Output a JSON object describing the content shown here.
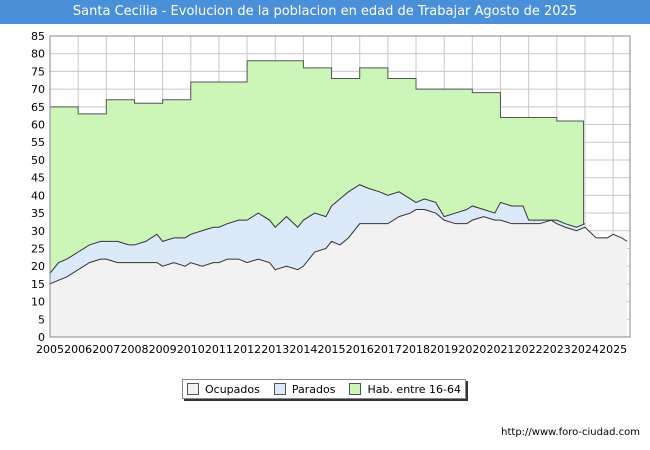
{
  "chart_data": {
    "type": "area",
    "title": "Santa Cecilia - Evolucion de la poblacion en edad de Trabajar Agosto de 2025",
    "xlabel": "",
    "ylabel": "",
    "xlim": [
      2005,
      2025.6
    ],
    "ylim": [
      0,
      85
    ],
    "grid": true,
    "x_ticks": [
      "2005",
      "2006",
      "2007",
      "2008",
      "2009",
      "2010",
      "2011",
      "2012",
      "2013",
      "2014",
      "2015",
      "2016",
      "2017",
      "2018",
      "2019",
      "2020",
      "2021",
      "2022",
      "2023",
      "2024",
      "2025"
    ],
    "y_ticks": [
      "0",
      "5",
      "10",
      "15",
      "20",
      "25",
      "30",
      "35",
      "40",
      "45",
      "50",
      "55",
      "60",
      "65",
      "70",
      "75",
      "80",
      "85"
    ],
    "legend_position": "bottom-center",
    "colors": {
      "ocupados": "#f2f2f2",
      "parados": "#dce9f8",
      "hab": "#ccf5b8",
      "line": "#333333",
      "grid": "#c8c8c8"
    },
    "series": [
      {
        "name": "Hab. entre 16-64",
        "steps": [
          [
            2005,
            65
          ],
          [
            2006,
            63
          ],
          [
            2007,
            67
          ],
          [
            2008,
            66
          ],
          [
            2009,
            67
          ],
          [
            2010,
            72
          ],
          [
            2011,
            72
          ],
          [
            2012,
            78
          ],
          [
            2013,
            78
          ],
          [
            2014,
            76
          ],
          [
            2015,
            73
          ],
          [
            2016,
            76
          ],
          [
            2017,
            73
          ],
          [
            2018,
            70
          ],
          [
            2019,
            70
          ],
          [
            2020,
            69
          ],
          [
            2021,
            62
          ],
          [
            2022,
            62
          ],
          [
            2023,
            61
          ],
          [
            2023.95,
            61
          ]
        ]
      },
      {
        "name": "Parados",
        "x": [
          2005,
          2005.3,
          2005.6,
          2006,
          2006.4,
          2006.8,
          2007,
          2007.4,
          2007.8,
          2008,
          2008.4,
          2008.8,
          2009,
          2009.4,
          2009.8,
          2010,
          2010.4,
          2010.8,
          2011,
          2011.3,
          2011.7,
          2012,
          2012.4,
          2012.8,
          2013,
          2013.4,
          2013.8,
          2014,
          2014.4,
          2014.8,
          2015,
          2015.3,
          2015.6,
          2016,
          2016.3,
          2016.7,
          2017,
          2017.4,
          2017.8,
          2018,
          2018.3,
          2018.7,
          2019,
          2019.4,
          2019.8,
          2020,
          2020.4,
          2020.8,
          2021,
          2021.4,
          2021.8,
          2022,
          2022.4,
          2022.8,
          2023,
          2023.3,
          2023.7,
          2024
        ],
        "values": [
          18,
          21,
          22,
          24,
          26,
          27,
          27,
          27,
          26,
          26,
          27,
          29,
          27,
          28,
          28,
          29,
          30,
          31,
          31,
          32,
          33,
          33,
          35,
          33,
          31,
          34,
          31,
          33,
          35,
          34,
          37,
          39,
          41,
          43,
          42,
          41,
          40,
          41,
          39,
          38,
          39,
          38,
          34,
          35,
          36,
          37,
          36,
          35,
          38,
          37,
          37,
          33,
          33,
          33,
          33,
          32,
          31,
          32
        ]
      },
      {
        "name": "Ocupados",
        "x": [
          2005,
          2005.3,
          2005.6,
          2006,
          2006.4,
          2006.8,
          2007,
          2007.4,
          2007.8,
          2008,
          2008.4,
          2008.8,
          2009,
          2009.4,
          2009.8,
          2010,
          2010.4,
          2010.8,
          2011,
          2011.3,
          2011.7,
          2012,
          2012.4,
          2012.8,
          2013,
          2013.4,
          2013.8,
          2014,
          2014.4,
          2014.8,
          2015,
          2015.3,
          2015.6,
          2016,
          2016.3,
          2016.7,
          2017,
          2017.4,
          2017.8,
          2018,
          2018.3,
          2018.7,
          2019,
          2019.4,
          2019.8,
          2020,
          2020.4,
          2020.8,
          2021,
          2021.4,
          2021.8,
          2022,
          2022.4,
          2022.8,
          2023,
          2023.3,
          2023.7,
          2024,
          2024.4,
          2024.8,
          2025,
          2025.3,
          2025.5
        ],
        "values": [
          15,
          16,
          17,
          19,
          21,
          22,
          22,
          21,
          21,
          21,
          21,
          21,
          20,
          21,
          20,
          21,
          20,
          21,
          21,
          22,
          22,
          21,
          22,
          21,
          19,
          20,
          19,
          20,
          24,
          25,
          27,
          26,
          28,
          32,
          32,
          32,
          32,
          34,
          35,
          36,
          36,
          35,
          33,
          32,
          32,
          33,
          34,
          33,
          33,
          32,
          32,
          32,
          32,
          33,
          32,
          31,
          30,
          31,
          28,
          28,
          29,
          28,
          27
        ]
      }
    ]
  },
  "legend": {
    "ocupados": "Ocupados",
    "parados": "Parados",
    "hab": "Hab. entre 16-64"
  },
  "footer": {
    "url": "http://www.foro-ciudad.com"
  }
}
